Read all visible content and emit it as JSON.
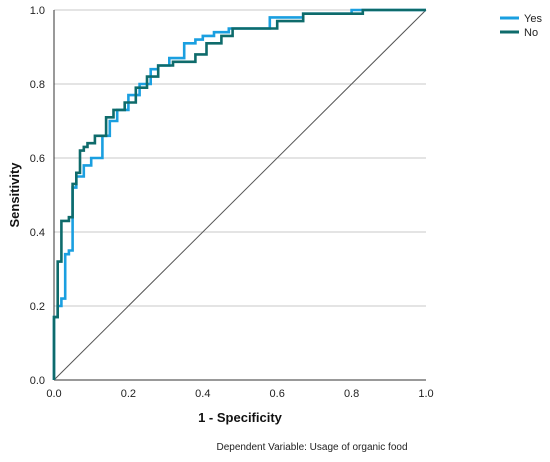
{
  "chart_data": {
    "type": "line",
    "subtype": "roc-curve",
    "title": "",
    "xlabel": "1 - Specificity",
    "ylabel": "Sensitivity",
    "xlim": [
      0,
      1
    ],
    "ylim": [
      0,
      1
    ],
    "xticks": [
      "0.0",
      "0.2",
      "0.4",
      "0.6",
      "0.8",
      "1.0"
    ],
    "yticks": [
      "0.0",
      "0.2",
      "0.4",
      "0.6",
      "0.8",
      "1.0"
    ],
    "grid": "horizontal",
    "legend_position": "top-right",
    "note": "Dependent Variable: Usage of organic food",
    "reference_line": {
      "x": [
        0,
        1
      ],
      "y": [
        0,
        1
      ],
      "color": "#555555"
    },
    "series": [
      {
        "name": "Yes",
        "color": "#1a9fe0",
        "x": [
          0.0,
          0.0,
          0.01,
          0.01,
          0.02,
          0.02,
          0.03,
          0.03,
          0.04,
          0.04,
          0.05,
          0.05,
          0.06,
          0.06,
          0.08,
          0.08,
          0.1,
          0.1,
          0.13,
          0.13,
          0.15,
          0.15,
          0.17,
          0.17,
          0.2,
          0.2,
          0.23,
          0.23,
          0.26,
          0.26,
          0.28,
          0.28,
          0.31,
          0.31,
          0.35,
          0.35,
          0.38,
          0.38,
          0.4,
          0.4,
          0.43,
          0.43,
          0.47,
          0.47,
          0.53,
          0.58,
          0.58,
          0.67,
          0.67,
          0.8,
          0.8,
          1.0
        ],
        "y": [
          0.0,
          0.17,
          0.17,
          0.2,
          0.2,
          0.22,
          0.22,
          0.34,
          0.34,
          0.35,
          0.35,
          0.52,
          0.52,
          0.55,
          0.55,
          0.58,
          0.58,
          0.6,
          0.6,
          0.66,
          0.66,
          0.7,
          0.7,
          0.73,
          0.73,
          0.77,
          0.77,
          0.8,
          0.8,
          0.84,
          0.84,
          0.85,
          0.85,
          0.87,
          0.87,
          0.91,
          0.91,
          0.92,
          0.92,
          0.93,
          0.93,
          0.94,
          0.94,
          0.95,
          0.95,
          0.95,
          0.98,
          0.98,
          0.99,
          0.99,
          1.0,
          1.0
        ]
      },
      {
        "name": "No",
        "color": "#0e6b6b",
        "x": [
          0.0,
          0.0,
          0.01,
          0.01,
          0.02,
          0.02,
          0.04,
          0.04,
          0.05,
          0.05,
          0.06,
          0.06,
          0.07,
          0.07,
          0.08,
          0.08,
          0.09,
          0.09,
          0.11,
          0.11,
          0.14,
          0.14,
          0.16,
          0.16,
          0.19,
          0.19,
          0.22,
          0.22,
          0.25,
          0.25,
          0.28,
          0.28,
          0.32,
          0.32,
          0.38,
          0.38,
          0.41,
          0.41,
          0.45,
          0.45,
          0.48,
          0.48,
          0.6,
          0.6,
          0.67,
          0.67,
          0.83,
          0.83,
          1.0
        ],
        "y": [
          0.0,
          0.17,
          0.17,
          0.32,
          0.32,
          0.43,
          0.43,
          0.44,
          0.44,
          0.53,
          0.53,
          0.56,
          0.56,
          0.62,
          0.62,
          0.63,
          0.63,
          0.64,
          0.64,
          0.66,
          0.66,
          0.71,
          0.71,
          0.73,
          0.73,
          0.75,
          0.75,
          0.79,
          0.79,
          0.82,
          0.82,
          0.85,
          0.85,
          0.86,
          0.86,
          0.88,
          0.88,
          0.91,
          0.91,
          0.93,
          0.93,
          0.95,
          0.95,
          0.97,
          0.97,
          0.99,
          0.99,
          1.0,
          1.0
        ]
      }
    ]
  }
}
